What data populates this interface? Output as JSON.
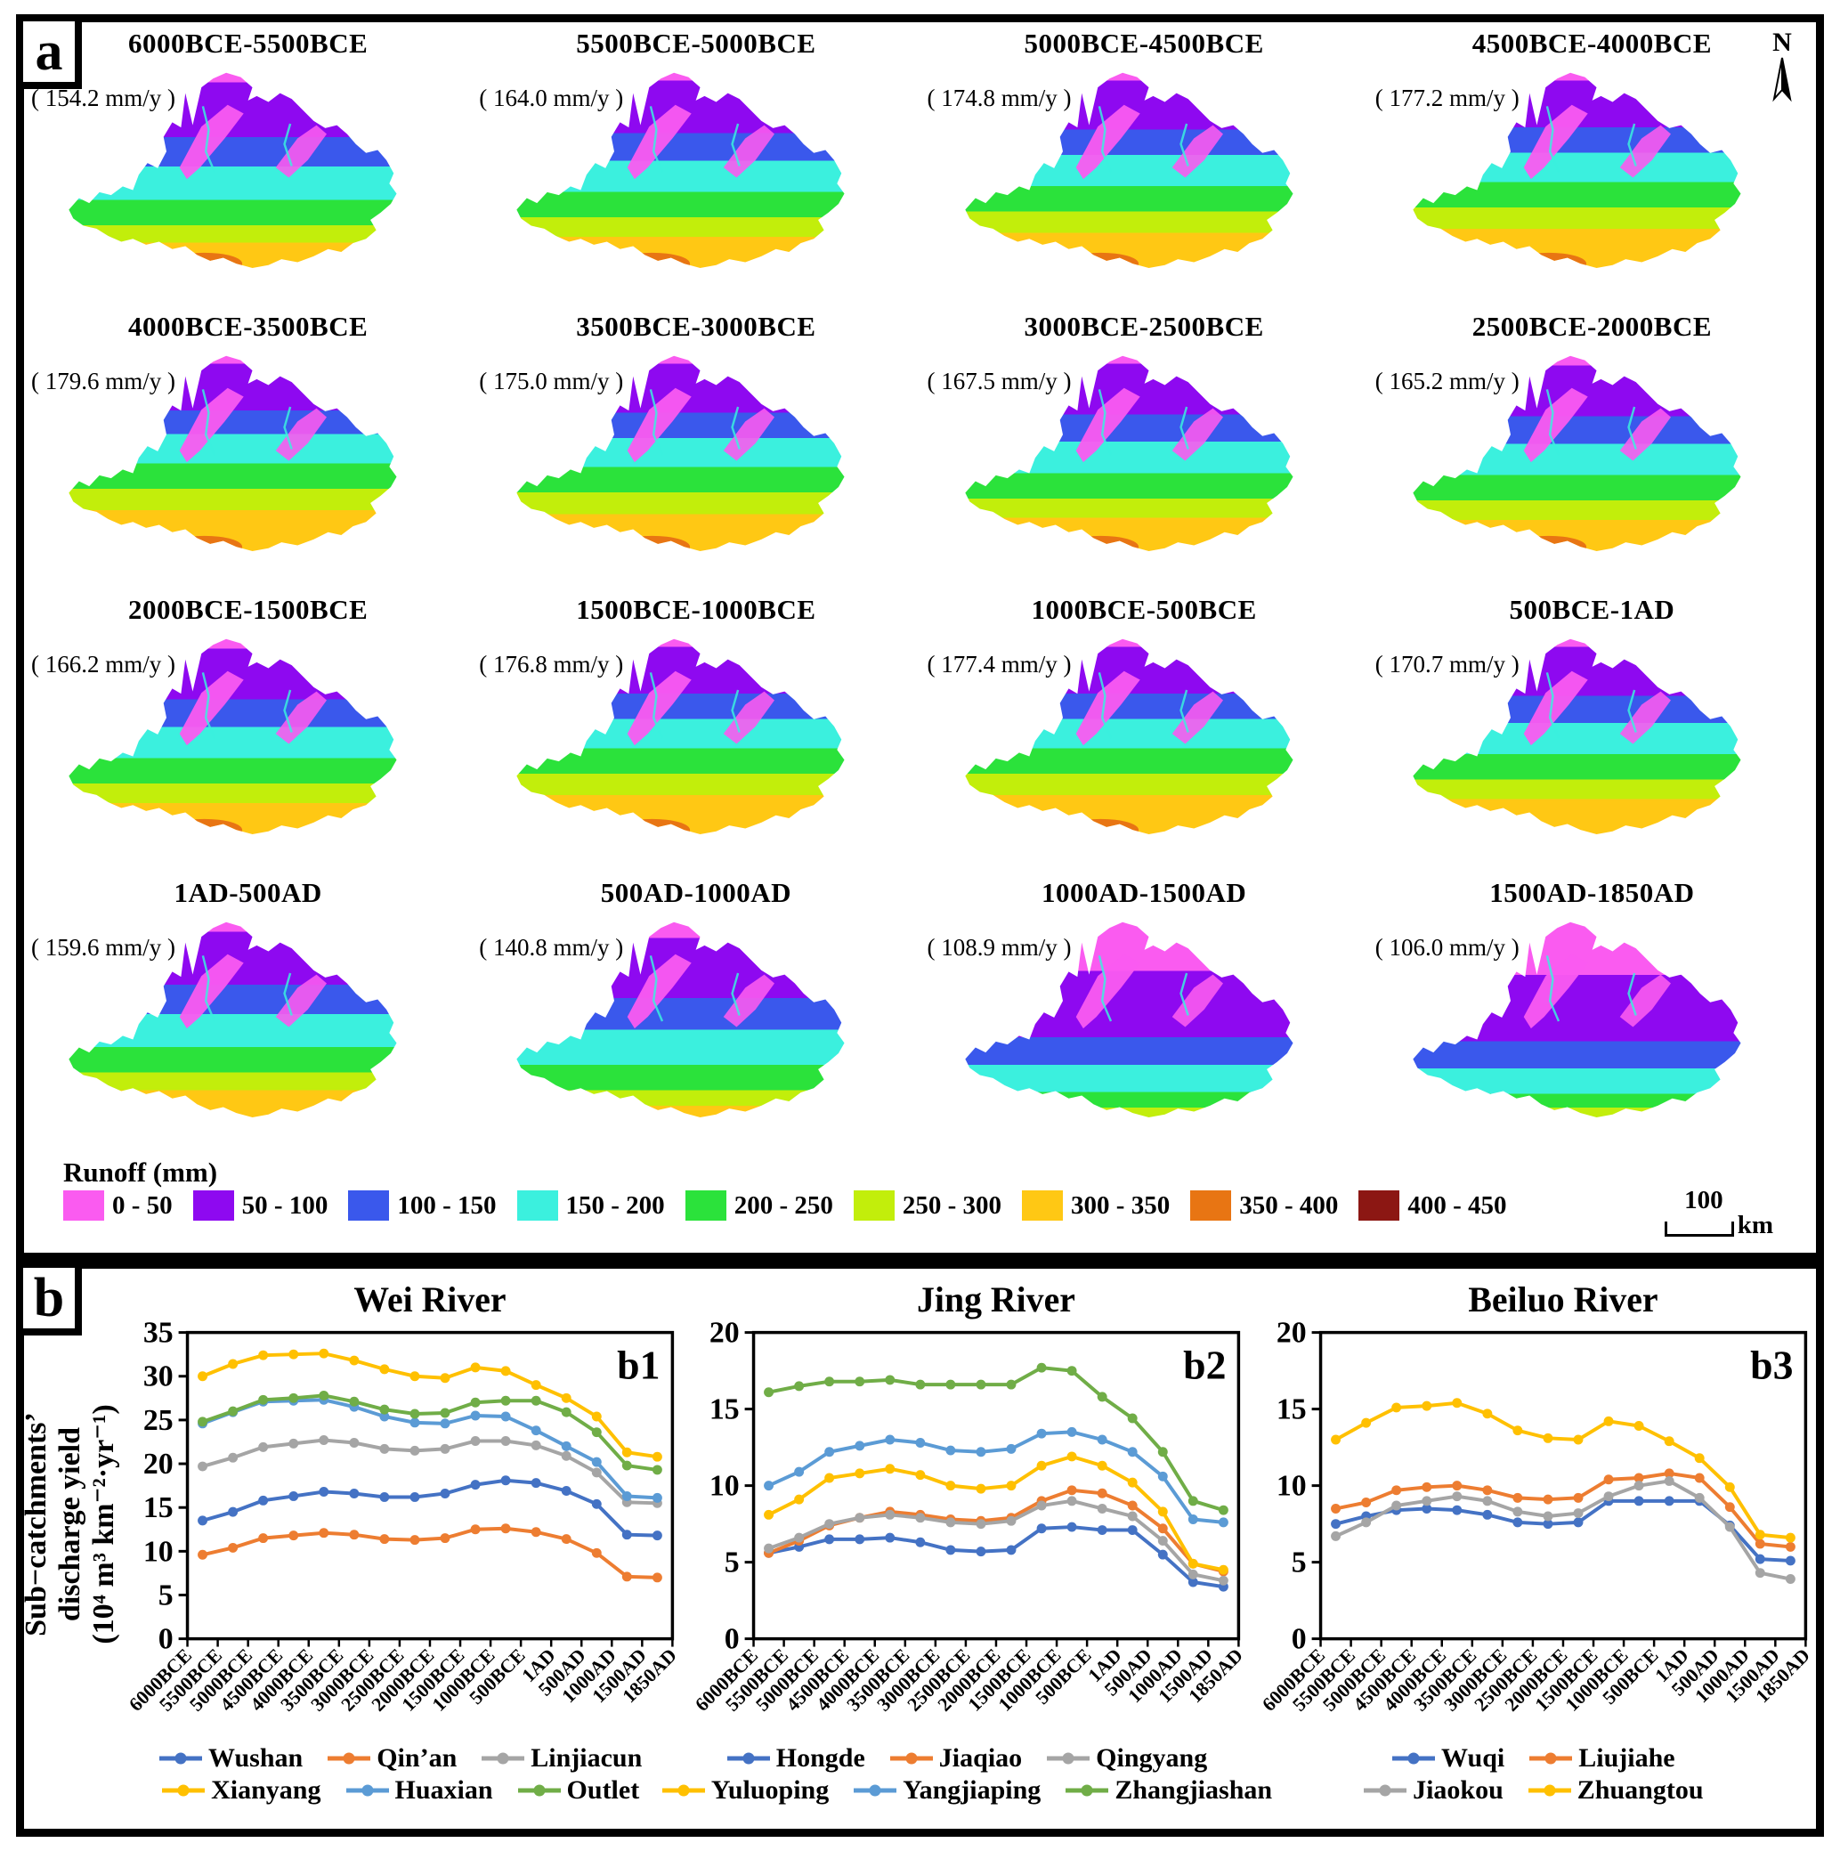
{
  "panel_a": {
    "label": "a",
    "north_label": "N",
    "maps": [
      {
        "title": "6000BCE-5500BCE",
        "rate": "154.2 mm/y",
        "bands": [
          [
            0,
            0.05
          ],
          [
            1,
            0.28
          ],
          [
            2,
            0.15
          ],
          [
            3,
            0.17
          ],
          [
            4,
            0.13
          ],
          [
            5,
            0.09
          ],
          [
            6,
            0.13
          ]
        ],
        "blob": true
      },
      {
        "title": "5500BCE-5000BCE",
        "rate": "164.0 mm/y",
        "bands": [
          [
            0,
            0.04
          ],
          [
            1,
            0.27
          ],
          [
            2,
            0.14
          ],
          [
            3,
            0.16
          ],
          [
            4,
            0.13
          ],
          [
            5,
            0.1
          ],
          [
            6,
            0.16
          ]
        ],
        "blob": true
      },
      {
        "title": "5000BCE-4500BCE",
        "rate": "174.8 mm/y",
        "bands": [
          [
            0,
            0.04
          ],
          [
            1,
            0.25
          ],
          [
            2,
            0.13
          ],
          [
            3,
            0.16
          ],
          [
            4,
            0.13
          ],
          [
            5,
            0.11
          ],
          [
            6,
            0.18
          ]
        ],
        "blob": true
      },
      {
        "title": "4500BCE-4000BCE",
        "rate": "177.2 mm/y",
        "bands": [
          [
            0,
            0.04
          ],
          [
            1,
            0.24
          ],
          [
            2,
            0.13
          ],
          [
            3,
            0.15
          ],
          [
            4,
            0.13
          ],
          [
            5,
            0.11
          ],
          [
            6,
            0.2
          ]
        ],
        "blob": true
      },
      {
        "title": "4000BCE-3500BCE",
        "rate": "179.6 mm/y",
        "bands": [
          [
            0,
            0.04
          ],
          [
            1,
            0.24
          ],
          [
            2,
            0.12
          ],
          [
            3,
            0.15
          ],
          [
            4,
            0.13
          ],
          [
            5,
            0.11
          ],
          [
            6,
            0.21
          ]
        ],
        "blob": true
      },
      {
        "title": "3500BCE-3000BCE",
        "rate": "175.0 mm/y",
        "bands": [
          [
            0,
            0.04
          ],
          [
            1,
            0.25
          ],
          [
            2,
            0.13
          ],
          [
            3,
            0.15
          ],
          [
            4,
            0.13
          ],
          [
            5,
            0.11
          ],
          [
            6,
            0.19
          ]
        ],
        "blob": true
      },
      {
        "title": "3000BCE-2500BCE",
        "rate": "167.5 mm/y",
        "bands": [
          [
            0,
            0.04
          ],
          [
            1,
            0.26
          ],
          [
            2,
            0.14
          ],
          [
            3,
            0.16
          ],
          [
            4,
            0.13
          ],
          [
            5,
            0.1
          ],
          [
            6,
            0.17
          ]
        ],
        "blob": true
      },
      {
        "title": "2500BCE-2000BCE",
        "rate": "165.2 mm/y",
        "bands": [
          [
            0,
            0.05
          ],
          [
            1,
            0.26
          ],
          [
            2,
            0.14
          ],
          [
            3,
            0.16
          ],
          [
            4,
            0.13
          ],
          [
            5,
            0.1
          ],
          [
            6,
            0.16
          ]
        ],
        "blob": true
      },
      {
        "title": "2000BCE-1500BCE",
        "rate": "166.2 mm/y",
        "bands": [
          [
            0,
            0.05
          ],
          [
            1,
            0.26
          ],
          [
            2,
            0.14
          ],
          [
            3,
            0.16
          ],
          [
            4,
            0.13
          ],
          [
            5,
            0.1
          ],
          [
            6,
            0.16
          ]
        ],
        "blob": true
      },
      {
        "title": "1500BCE-1000BCE",
        "rate": "176.8 mm/y",
        "bands": [
          [
            0,
            0.04
          ],
          [
            1,
            0.24
          ],
          [
            2,
            0.13
          ],
          [
            3,
            0.15
          ],
          [
            4,
            0.13
          ],
          [
            5,
            0.11
          ],
          [
            6,
            0.2
          ]
        ],
        "blob": true
      },
      {
        "title": "1000BCE-500BCE",
        "rate": "177.4 mm/y",
        "bands": [
          [
            0,
            0.04
          ],
          [
            1,
            0.24
          ],
          [
            2,
            0.13
          ],
          [
            3,
            0.15
          ],
          [
            4,
            0.13
          ],
          [
            5,
            0.11
          ],
          [
            6,
            0.2
          ]
        ],
        "blob": true
      },
      {
        "title": "500BCE-1AD",
        "rate": "170.7 mm/y",
        "bands": [
          [
            0,
            0.04
          ],
          [
            1,
            0.25
          ],
          [
            2,
            0.14
          ],
          [
            3,
            0.16
          ],
          [
            4,
            0.13
          ],
          [
            5,
            0.1
          ],
          [
            6,
            0.18
          ]
        ],
        "blob": false
      },
      {
        "title": "1AD-500AD",
        "rate": "159.6 mm/y",
        "bands": [
          [
            0,
            0.05
          ],
          [
            1,
            0.27
          ],
          [
            2,
            0.15
          ],
          [
            3,
            0.17
          ],
          [
            4,
            0.13
          ],
          [
            5,
            0.09
          ],
          [
            6,
            0.14
          ]
        ],
        "blob": false
      },
      {
        "title": "500AD-1000AD",
        "rate": "140.8 mm/y",
        "bands": [
          [
            0,
            0.08
          ],
          [
            1,
            0.31
          ],
          [
            2,
            0.16
          ],
          [
            3,
            0.18
          ],
          [
            4,
            0.13
          ],
          [
            5,
            0.08
          ],
          [
            6,
            0.06
          ]
        ],
        "blob": false
      },
      {
        "title": "1000AD-1500AD",
        "rate": "108.9 mm/y",
        "bands": [
          [
            0,
            0.25
          ],
          [
            1,
            0.34
          ],
          [
            2,
            0.14
          ],
          [
            3,
            0.14
          ],
          [
            4,
            0.08
          ],
          [
            5,
            0.05
          ]
        ],
        "blob": false
      },
      {
        "title": "1500AD-1850AD",
        "rate": "106.0 mm/y",
        "bands": [
          [
            0,
            0.27
          ],
          [
            1,
            0.34
          ],
          [
            2,
            0.14
          ],
          [
            3,
            0.13
          ],
          [
            4,
            0.07
          ],
          [
            5,
            0.05
          ]
        ],
        "blob": false
      }
    ],
    "legend": {
      "title": "Runoff (mm)",
      "classes": [
        {
          "label": "0 - 50",
          "color": "#FA5BF0"
        },
        {
          "label": "50 - 100",
          "color": "#8E09F0"
        },
        {
          "label": "100 - 150",
          "color": "#3A58EC"
        },
        {
          "label": "150 - 200",
          "color": "#3BF0DE"
        },
        {
          "label": "200 - 250",
          "color": "#2BE23B"
        },
        {
          "label": "250 - 300",
          "color": "#C2EE0B"
        },
        {
          "label": "300 - 350",
          "color": "#FFC814"
        },
        {
          "label": "350 - 400",
          "color": "#E87513"
        },
        {
          "label": "400 - 450",
          "color": "#8C1713"
        }
      ]
    },
    "scalebar": {
      "value": "100",
      "unit": "km"
    }
  },
  "panel_b": {
    "label": "b",
    "ylabel_lines": [
      "Sub−catchments’",
      "discharge yield",
      "(10⁴ m³ km⁻²·yr⁻¹)"
    ]
  },
  "chart_data": [
    {
      "type": "line",
      "title": "Wei River",
      "tag": "b1",
      "ylim": [
        0,
        35
      ],
      "yticks": [
        0,
        5,
        10,
        15,
        20,
        25,
        30,
        35
      ],
      "x_labels": [
        "6000BCE",
        "5500BCE",
        "5000BCE",
        "4500BCE",
        "4000BCE",
        "3500BCE",
        "3000BCE",
        "2500BCE",
        "2000BCE",
        "1500BCE",
        "1000BCE",
        "500BCE",
        "1AD",
        "500AD",
        "1000AD",
        "1500AD",
        "1850AD"
      ],
      "note": "16 values per series, one per 500-yr bin between axis labels",
      "series": [
        {
          "name": "Wushan",
          "color": "#4472C4",
          "values": [
            13.5,
            14.5,
            15.8,
            16.3,
            16.8,
            16.6,
            16.2,
            16.2,
            16.6,
            17.6,
            18.1,
            17.8,
            16.9,
            15.4,
            11.9,
            11.8
          ]
        },
        {
          "name": "Qin’an",
          "color": "#ED7D31",
          "values": [
            9.6,
            10.4,
            11.5,
            11.8,
            12.1,
            11.9,
            11.4,
            11.3,
            11.5,
            12.5,
            12.6,
            12.2,
            11.4,
            9.8,
            7.1,
            7.0
          ]
        },
        {
          "name": "Linjiacun",
          "color": "#A5A5A5",
          "values": [
            19.7,
            20.7,
            21.9,
            22.3,
            22.7,
            22.4,
            21.7,
            21.5,
            21.7,
            22.6,
            22.6,
            22.1,
            20.9,
            19.0,
            15.6,
            15.5
          ]
        },
        {
          "name": "Xianyang",
          "color": "#FFC000",
          "values": [
            30.0,
            31.4,
            32.4,
            32.5,
            32.6,
            31.8,
            30.8,
            30.0,
            29.8,
            31.0,
            30.6,
            29.0,
            27.5,
            25.4,
            21.3,
            20.8
          ]
        },
        {
          "name": "Huaxian",
          "color": "#5B9BD5",
          "values": [
            24.6,
            25.9,
            27.1,
            27.2,
            27.3,
            26.5,
            25.4,
            24.7,
            24.6,
            25.5,
            25.4,
            23.8,
            22.0,
            20.2,
            16.3,
            16.1
          ]
        },
        {
          "name": "Outlet",
          "color": "#70AD47",
          "values": [
            24.8,
            26.0,
            27.3,
            27.5,
            27.8,
            27.1,
            26.2,
            25.7,
            25.8,
            27.0,
            27.2,
            27.2,
            25.9,
            23.6,
            19.8,
            19.3
          ]
        }
      ],
      "legend_rows": [
        [
          "Wushan",
          "Qin’an",
          "Linjiacun"
        ],
        [
          "Xianyang",
          "Huaxian",
          "Outlet"
        ]
      ]
    },
    {
      "type": "line",
      "title": "Jing River",
      "tag": "b2",
      "ylim": [
        0,
        20
      ],
      "yticks": [
        0,
        5,
        10,
        15,
        20
      ],
      "x_labels": [
        "6000BCE",
        "5500BCE",
        "5000BCE",
        "4500BCE",
        "4000BCE",
        "3500BCE",
        "3000BCE",
        "2500BCE",
        "2000BCE",
        "1500BCE",
        "1000BCE",
        "500BCE",
        "1AD",
        "500AD",
        "1000AD",
        "1500AD",
        "1850AD"
      ],
      "series": [
        {
          "name": "Hongde",
          "color": "#4472C4",
          "values": [
            5.6,
            6.0,
            6.5,
            6.5,
            6.6,
            6.3,
            5.8,
            5.7,
            5.8,
            7.2,
            7.3,
            7.1,
            7.1,
            5.5,
            3.7,
            3.4
          ]
        },
        {
          "name": "Jiaqiao",
          "color": "#ED7D31",
          "values": [
            5.6,
            6.4,
            7.4,
            7.9,
            8.3,
            8.1,
            7.8,
            7.7,
            7.9,
            9.0,
            9.7,
            9.5,
            8.7,
            7.2,
            4.9,
            4.4
          ]
        },
        {
          "name": "Qingyang",
          "color": "#A5A5A5",
          "values": [
            5.9,
            6.6,
            7.5,
            7.9,
            8.1,
            7.9,
            7.6,
            7.5,
            7.7,
            8.7,
            9.0,
            8.5,
            8.0,
            6.4,
            4.2,
            3.8
          ]
        },
        {
          "name": "Yuluoping",
          "color": "#FFC000",
          "values": [
            8.1,
            9.1,
            10.5,
            10.8,
            11.1,
            10.7,
            10.0,
            9.8,
            10.0,
            11.3,
            11.9,
            11.3,
            10.2,
            8.3,
            4.9,
            4.5
          ]
        },
        {
          "name": "Yangjiaping",
          "color": "#5B9BD5",
          "values": [
            10.0,
            10.9,
            12.2,
            12.6,
            13.0,
            12.8,
            12.3,
            12.2,
            12.4,
            13.4,
            13.5,
            13.0,
            12.2,
            10.6,
            7.8,
            7.6
          ]
        },
        {
          "name": "Zhangjiashan",
          "color": "#70AD47",
          "values": [
            16.1,
            16.5,
            16.8,
            16.8,
            16.9,
            16.6,
            16.6,
            16.6,
            16.6,
            17.7,
            17.5,
            15.8,
            14.4,
            12.2,
            9.0,
            8.4
          ]
        }
      ],
      "legend_rows": [
        [
          "Hongde",
          "Jiaqiao",
          "Qingyang"
        ],
        [
          "Yuluoping",
          "Yangjiaping",
          "Zhangjiashan"
        ]
      ]
    },
    {
      "type": "line",
      "title": "Beiluo River",
      "tag": "b3",
      "ylim": [
        0,
        20
      ],
      "yticks": [
        0,
        5,
        10,
        15,
        20
      ],
      "x_labels": [
        "6000BCE",
        "5500BCE",
        "5000BCE",
        "4500BCE",
        "4000BCE",
        "3500BCE",
        "3000BCE",
        "2500BCE",
        "2000BCE",
        "1500BCE",
        "1000BCE",
        "500BCE",
        "1AD",
        "500AD",
        "1000AD",
        "1500AD",
        "1850AD"
      ],
      "series": [
        {
          "name": "Wuqi",
          "color": "#4472C4",
          "values": [
            7.5,
            8.0,
            8.4,
            8.5,
            8.4,
            8.1,
            7.6,
            7.5,
            7.6,
            9.0,
            9.0,
            9.0,
            9.0,
            7.4,
            5.2,
            5.1
          ]
        },
        {
          "name": "Liujiahe",
          "color": "#ED7D31",
          "values": [
            8.5,
            8.9,
            9.7,
            9.9,
            10.0,
            9.7,
            9.2,
            9.1,
            9.2,
            10.4,
            10.5,
            10.8,
            10.5,
            8.6,
            6.2,
            6.0
          ]
        },
        {
          "name": "Jiaokou",
          "color": "#A5A5A5",
          "values": [
            6.7,
            7.6,
            8.7,
            9.0,
            9.3,
            9.0,
            8.3,
            8.0,
            8.2,
            9.3,
            10.0,
            10.3,
            9.2,
            7.3,
            4.3,
            3.9
          ]
        },
        {
          "name": "Zhuangtou",
          "color": "#FFC000",
          "values": [
            13.0,
            14.1,
            15.1,
            15.2,
            15.4,
            14.7,
            13.6,
            13.1,
            13.0,
            14.2,
            13.9,
            12.9,
            11.8,
            9.9,
            6.8,
            6.6
          ]
        }
      ],
      "legend_rows": [
        [
          "Wuqi",
          "Liujiahe"
        ],
        [
          "Jiaokou",
          "Zhuangtou"
        ]
      ]
    }
  ]
}
